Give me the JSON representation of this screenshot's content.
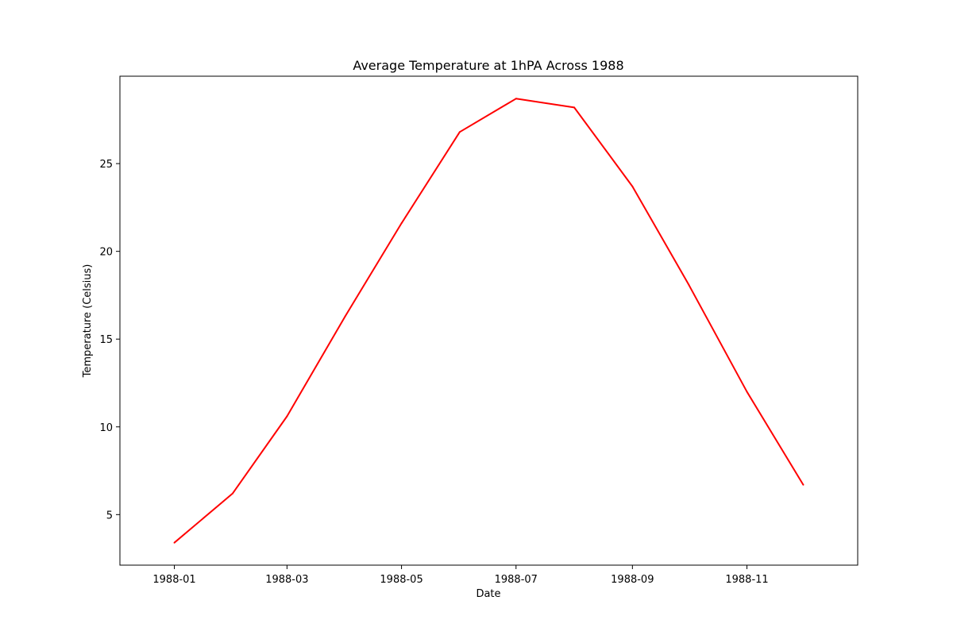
{
  "chart_data": {
    "type": "line",
    "title": "Average Temperature at 1hPA Across 1988",
    "xlabel": "Date",
    "ylabel": "Temperature (Celsius)",
    "x": [
      "1988-01-01",
      "1988-02-01",
      "1988-03-01",
      "1988-04-01",
      "1988-05-01",
      "1988-06-01",
      "1988-07-01",
      "1988-08-01",
      "1988-09-01",
      "1988-10-01",
      "1988-11-01",
      "1988-12-01"
    ],
    "series": [
      {
        "values": [
          3.4,
          6.2,
          10.6,
          16.3,
          21.6,
          26.8,
          28.7,
          28.2,
          23.7,
          18.1,
          12.0,
          6.7
        ],
        "color": "#ff0000"
      }
    ],
    "xticks": [
      "1988-01",
      "1988-03",
      "1988-05",
      "1988-07",
      "1988-09",
      "1988-11"
    ],
    "yticks": [
      5,
      10,
      15,
      20,
      25
    ],
    "xlim": [
      "1987-12-03",
      "1988-12-30"
    ],
    "ylim": [
      2.12,
      29.98
    ],
    "grid": false,
    "legend": "none"
  }
}
